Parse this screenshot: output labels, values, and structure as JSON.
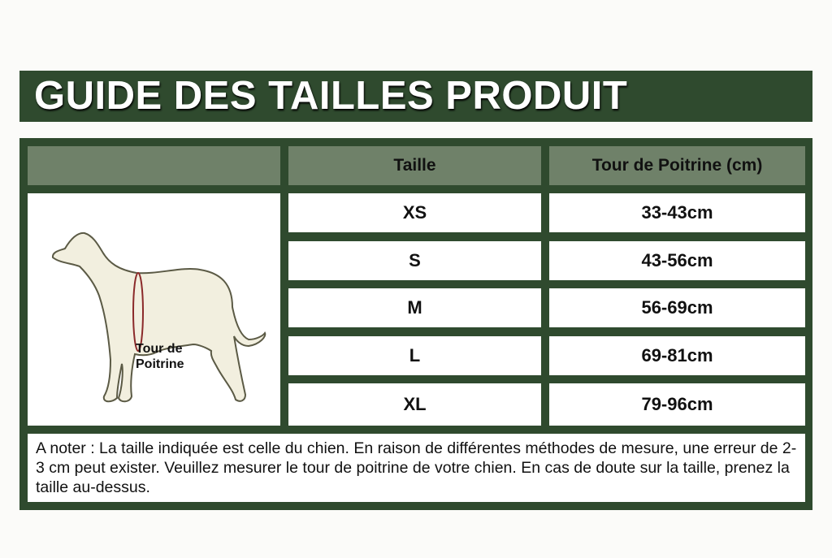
{
  "title": "GUIDE DES TAILLES PRODUIT",
  "header": {
    "size": "Taille",
    "chest": "Tour de Poitrine (cm)"
  },
  "illustration": {
    "icon": "dog-silhouette-icon",
    "label_line1": "Tour de",
    "label_line2": "Poitrine",
    "measure_color": "#8b2a2a"
  },
  "rows": [
    {
      "size": "XS",
      "chest": "33-43cm"
    },
    {
      "size": "S",
      "chest": "43-56cm"
    },
    {
      "size": "M",
      "chest": "56-69cm"
    },
    {
      "size": "L",
      "chest": "69-81cm"
    },
    {
      "size": "XL",
      "chest": "79-96cm"
    }
  ],
  "note": "A noter : La taille indiquée est celle du chien. En raison de différentes méthodes de mesure, une erreur de 2-3 cm peut exister. Veuillez mesurer le tour de poitrine de votre chien. En cas de doute sur la taille, prenez la taille au-dessus.",
  "colors": {
    "dark_green": "#2f4a2e",
    "header_green": "#6f8169"
  }
}
